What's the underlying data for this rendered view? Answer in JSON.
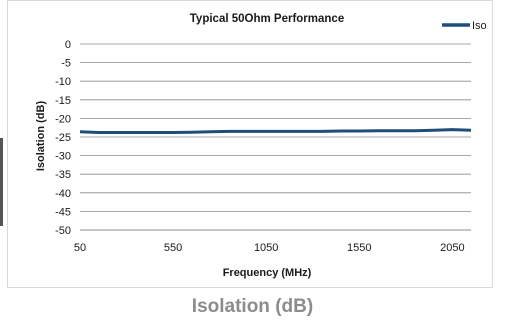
{
  "chart_data": {
    "type": "line",
    "title": "Typical 50Ohm Performance",
    "xlabel": "Frequency (MHz)",
    "ylabel": "Isolation (dB)",
    "xlim": [
      50,
      2150
    ],
    "ylim": [
      -50,
      0
    ],
    "x_ticks": [
      50,
      550,
      1050,
      1550,
      2050
    ],
    "y_ticks": [
      0,
      -5,
      -10,
      -15,
      -20,
      -25,
      -30,
      -35,
      -40,
      -45,
      -50
    ],
    "grid": "horizontal",
    "legend_position": "top-right",
    "series": [
      {
        "name": "Iso",
        "color": "#1f4e79",
        "x": [
          50,
          150,
          250,
          350,
          450,
          550,
          650,
          750,
          850,
          950,
          1050,
          1150,
          1250,
          1350,
          1450,
          1550,
          1650,
          1750,
          1850,
          1950,
          2050,
          2150
        ],
        "y": [
          -23.6,
          -23.8,
          -23.8,
          -23.8,
          -23.8,
          -23.8,
          -23.7,
          -23.6,
          -23.5,
          -23.5,
          -23.5,
          -23.5,
          -23.5,
          -23.5,
          -23.4,
          -23.4,
          -23.3,
          -23.3,
          -23.3,
          -23.2,
          -23.0,
          -23.2
        ]
      }
    ]
  },
  "caption": "Isolation (dB)"
}
